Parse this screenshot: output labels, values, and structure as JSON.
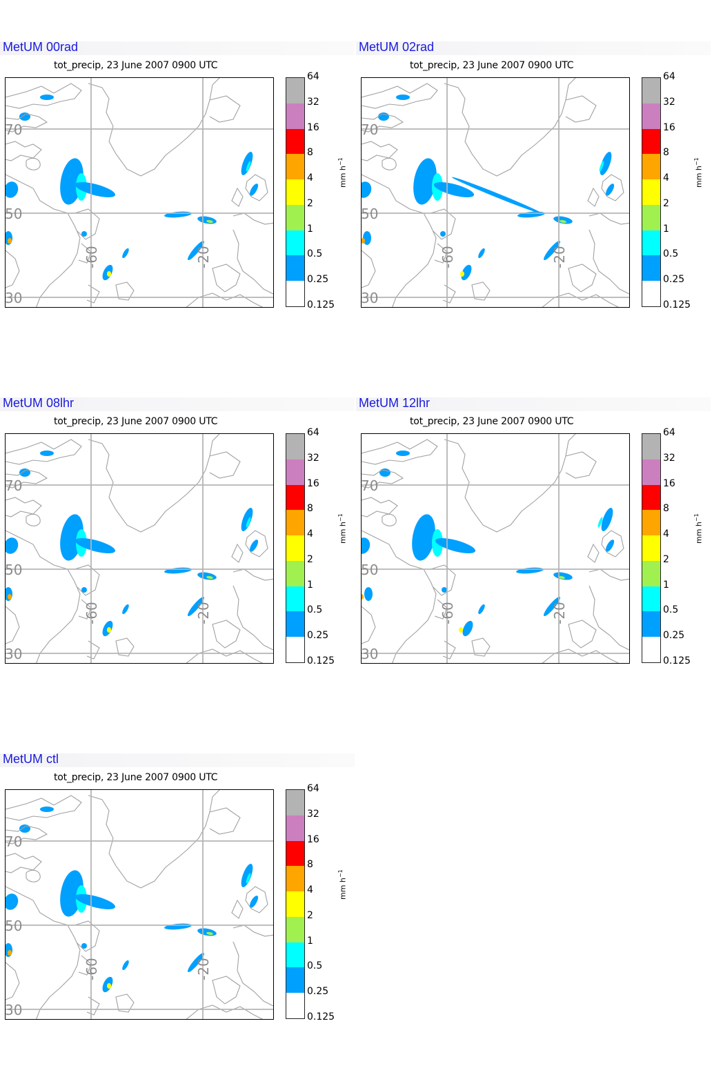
{
  "subtitle": "tot_precip, 23 June 2007 0900 UTC",
  "colorbar": {
    "levels": [
      "64",
      "32",
      "16",
      "8",
      "4",
      "2",
      "1",
      "0.5",
      "0.25",
      "0.125"
    ],
    "colors": [
      "#b3b3b3",
      "#cc7fbf",
      "#ff0000",
      "#ffa500",
      "#ffff00",
      "#a0f050",
      "#00ffff",
      "#00a0ff",
      "#ffffff"
    ],
    "unit_base": "mm h",
    "unit_exp": "−1"
  },
  "grid_labels": {
    "lat": [
      "70",
      "50",
      "30"
    ],
    "lon": [
      "-60",
      "-20"
    ]
  },
  "panels": [
    {
      "title": "MetUM 00rad"
    },
    {
      "title": "MetUM 02rad"
    },
    {
      "title": "MetUM 08lhr"
    },
    {
      "title": "MetUM 12lhr"
    },
    {
      "title": "MetUM ctl"
    }
  ]
}
